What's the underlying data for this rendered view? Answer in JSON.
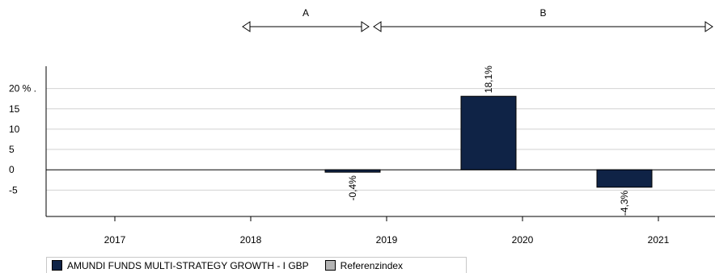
{
  "chart_data": {
    "type": "bar",
    "categories": [
      "2017",
      "2018",
      "2019",
      "2020",
      "2021"
    ],
    "series": [
      {
        "name": "AMUNDI FUNDS MULTI-STRATEGY GROWTH - I GBP",
        "values": [
          null,
          null,
          -0.4,
          18.1,
          -4.3
        ],
        "color": "#0f2346"
      },
      {
        "name": "Referenzindex",
        "values": [
          null,
          null,
          null,
          null,
          null
        ],
        "color": "#b4b4b4"
      }
    ],
    "data_labels": [
      "",
      "",
      "-0,4%",
      "18,1%",
      "-4,3%"
    ],
    "y_ticks": [
      {
        "value": 20,
        "label": "20 % ."
      },
      {
        "value": 15,
        "label": "15"
      },
      {
        "value": 10,
        "label": "10"
      },
      {
        "value": 5,
        "label": "5"
      },
      {
        "value": 0,
        "label": "0"
      },
      {
        "value": -5,
        "label": "-5"
      }
    ],
    "ylim": [
      -11.5,
      25.5
    ],
    "grid": true,
    "legend_position": "bottom-left",
    "periods": [
      {
        "label": "A",
        "from": "2018",
        "to": "2019"
      },
      {
        "label": "B",
        "from": "2019",
        "to": "end"
      }
    ]
  }
}
